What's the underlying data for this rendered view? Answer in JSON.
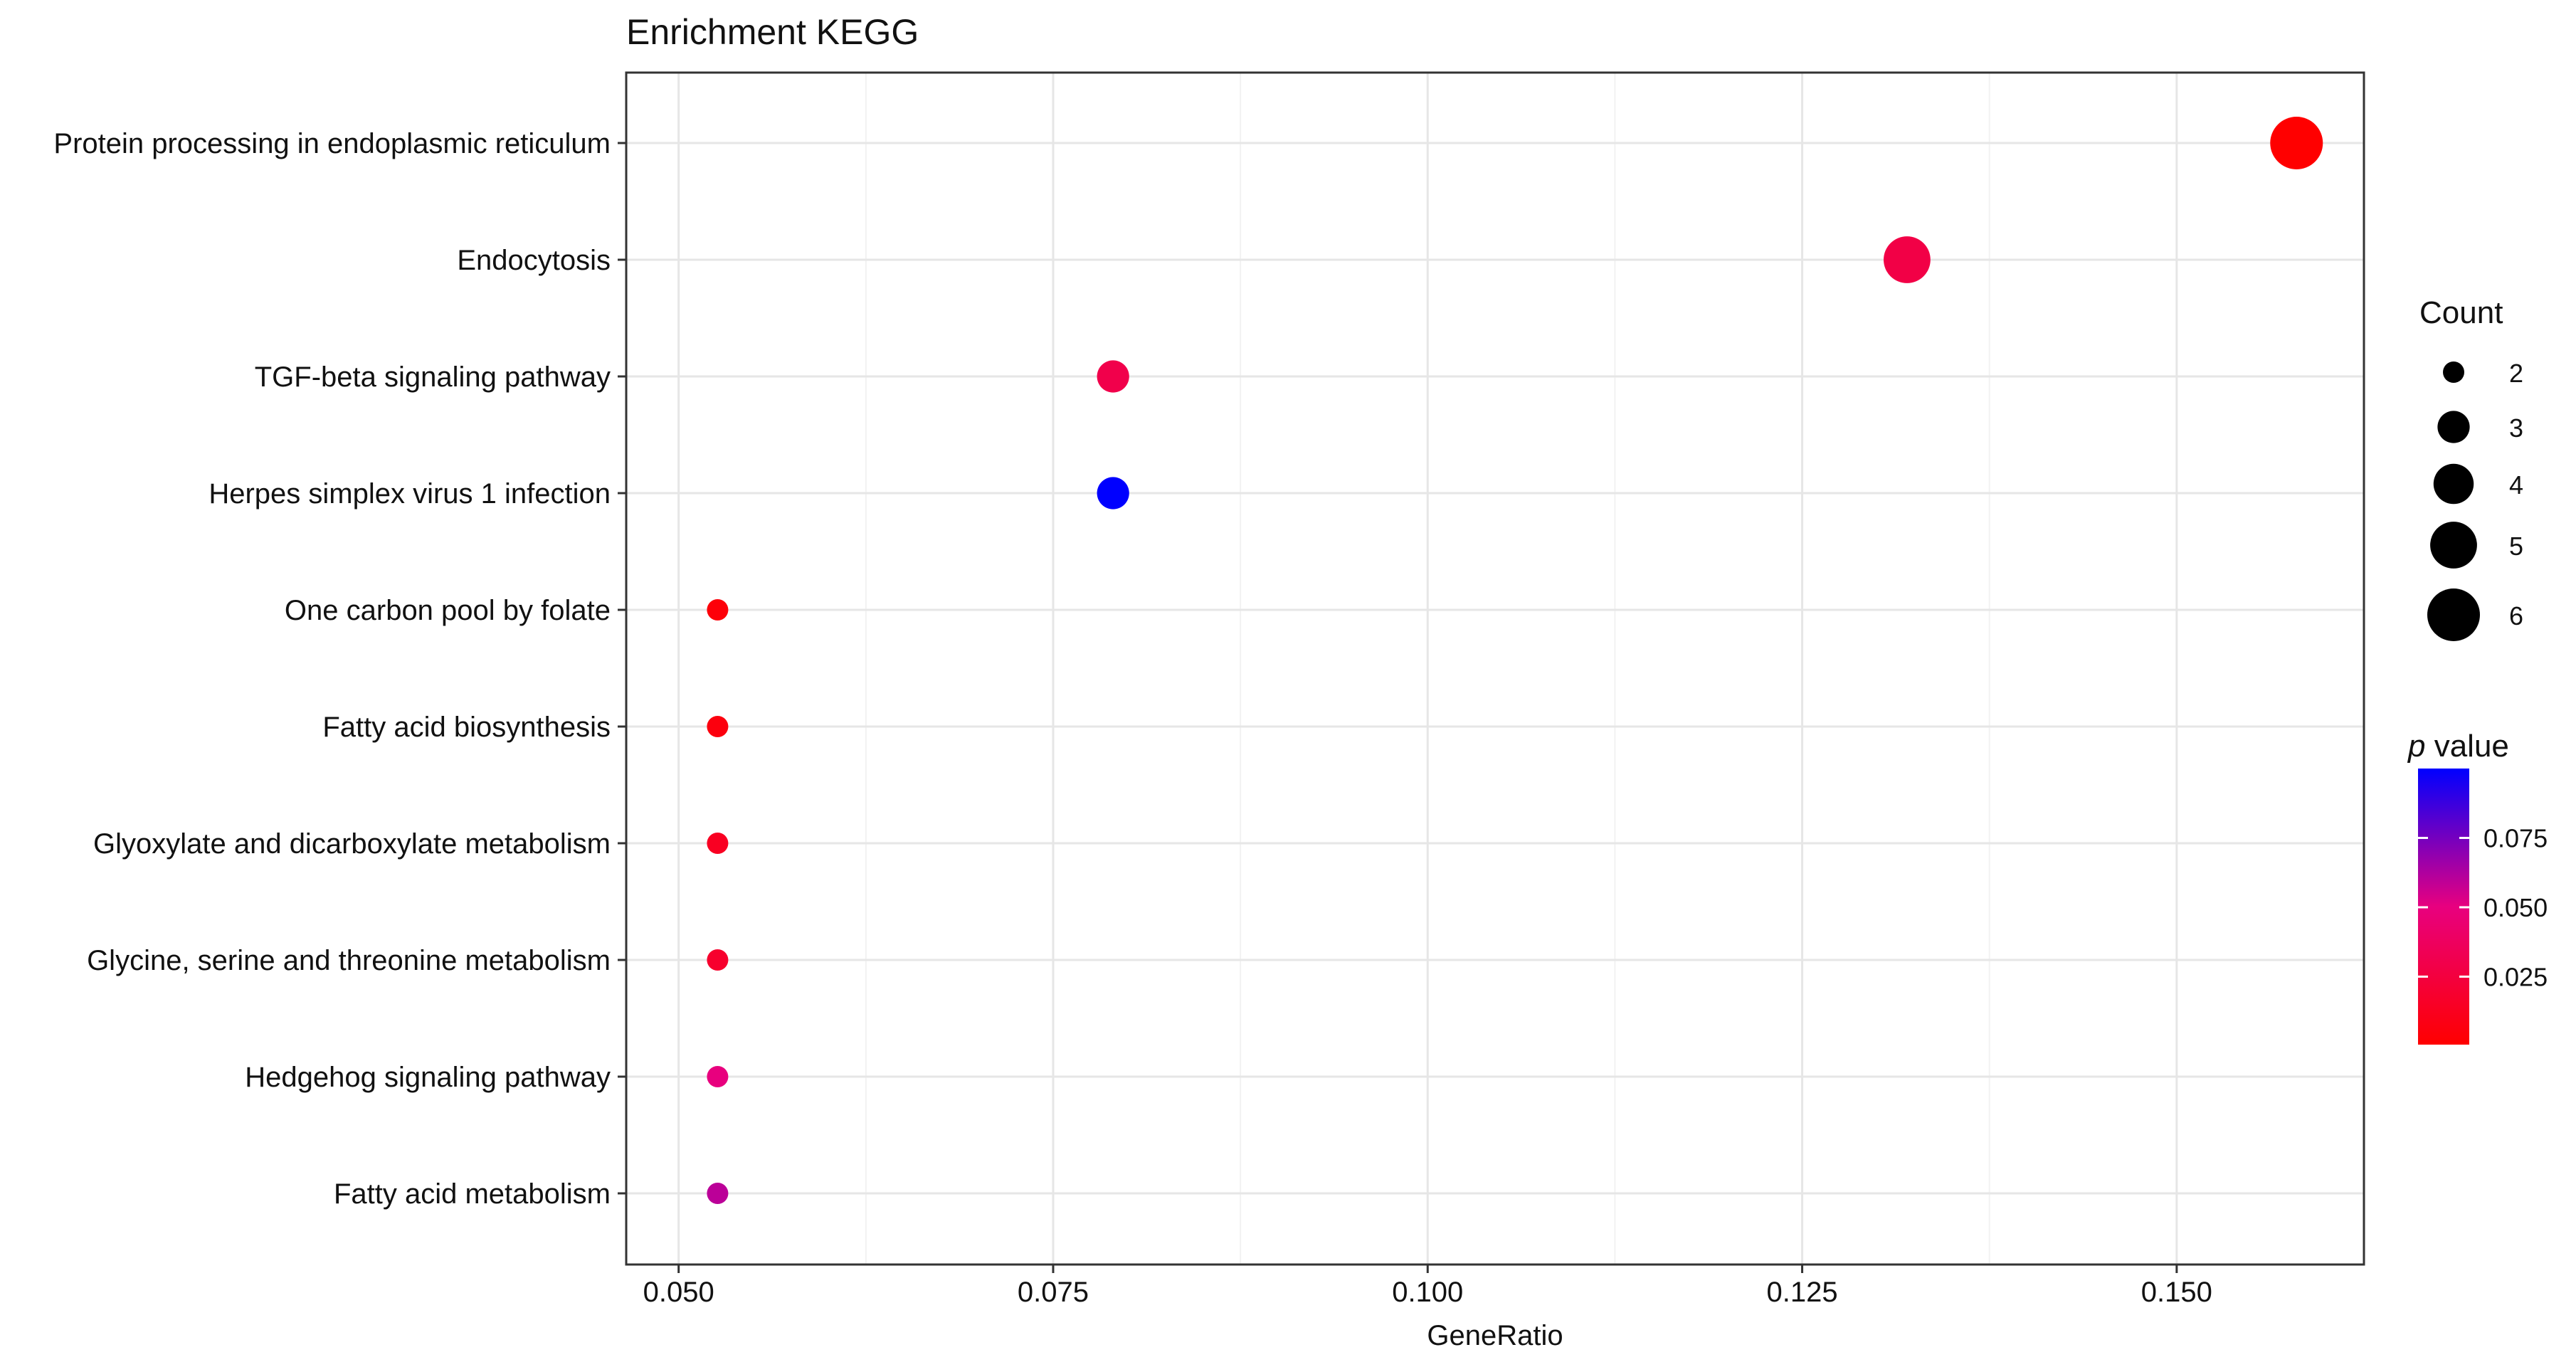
{
  "chart_data": {
    "type": "scatter",
    "title": "Enrichment KEGG",
    "xlabel": "GeneRatio",
    "ylabel": "",
    "xlim": [
      0.0465,
      0.1625
    ],
    "x_ticks": [
      "0.050",
      "0.075",
      "0.100",
      "0.125",
      "0.150"
    ],
    "x_tick_values": [
      0.05,
      0.075,
      0.1,
      0.125,
      0.15
    ],
    "grid": true,
    "categories": [
      "Protein processing in endoplasmic reticulum",
      "Endocytosis",
      "TGF-beta signaling pathway",
      "Herpes simplex virus 1 infection",
      "One carbon pool by folate",
      "Fatty acid biosynthesis",
      "Glyoxylate and dicarboxylate metabolism",
      "Glycine, serine and threonine metabolism",
      "Hedgehog signaling pathway",
      "Fatty acid metabolism"
    ],
    "points": [
      {
        "term": "Protein processing in endoplasmic reticulum",
        "gene_ratio": 0.158,
        "count": 6,
        "p_value": 0.0005
      },
      {
        "term": "Endocytosis",
        "gene_ratio": 0.132,
        "count": 5,
        "p_value": 0.028
      },
      {
        "term": "TGF-beta signaling pathway",
        "gene_ratio": 0.079,
        "count": 3,
        "p_value": 0.03
      },
      {
        "term": "Herpes simplex virus 1 infection",
        "gene_ratio": 0.079,
        "count": 3,
        "p_value": 0.1
      },
      {
        "term": "One carbon pool by folate",
        "gene_ratio": 0.0526,
        "count": 2,
        "p_value": 0.004
      },
      {
        "term": "Fatty acid biosynthesis",
        "gene_ratio": 0.0526,
        "count": 2,
        "p_value": 0.006
      },
      {
        "term": "Glyoxylate and dicarboxylate metabolism",
        "gene_ratio": 0.0526,
        "count": 2,
        "p_value": 0.014
      },
      {
        "term": "Glycine, serine and threonine metabolism",
        "gene_ratio": 0.0526,
        "count": 2,
        "p_value": 0.018
      },
      {
        "term": "Hedgehog signaling pathway",
        "gene_ratio": 0.0526,
        "count": 2,
        "p_value": 0.05
      },
      {
        "term": "Fatty acid metabolism",
        "gene_ratio": 0.0526,
        "count": 2,
        "p_value": 0.06
      }
    ],
    "legend_position": "right",
    "size_legend": {
      "title": "Count",
      "values": [
        2,
        3,
        4,
        5,
        6
      ],
      "labels": [
        "2",
        "3",
        "4",
        "5",
        "6"
      ]
    },
    "color_legend": {
      "title_italic": "p",
      "title_rest": " value",
      "range": [
        0.0005,
        0.1
      ],
      "ticks": [
        0.025,
        0.05,
        0.075
      ],
      "tick_labels": [
        "0.025",
        "0.050",
        "0.075"
      ],
      "low_color": "#ff0000",
      "high_color": "#0000ff"
    }
  }
}
